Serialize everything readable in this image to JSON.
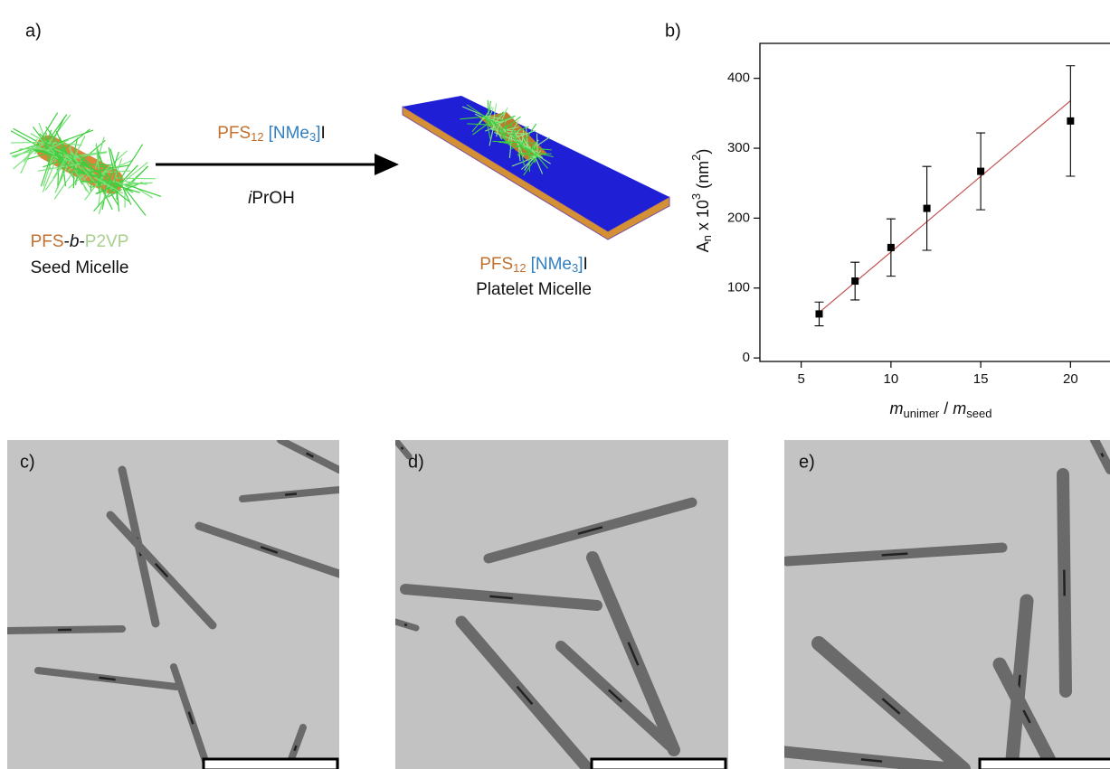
{
  "panels": {
    "a": {
      "label": "a)",
      "reagent": {
        "base": "PFS",
        "sub": "12",
        "group": "[NMe",
        "group_sub": "3",
        "bracket": "]",
        "ion": "I"
      },
      "solvent": {
        "italic": "i",
        "rest": "PrOH"
      },
      "seed": {
        "block1": "PFS",
        "dash1": "-",
        "b": "b",
        "dash2": "-",
        "block2": "P2VP",
        "caption": "Seed Micelle"
      },
      "platelet": {
        "base": "PFS",
        "sub": "12",
        "group": "[NMe",
        "group_sub": "3",
        "bracket": "]",
        "ion": "I",
        "caption": "Platelet Micelle"
      }
    },
    "b": {
      "label": "b)"
    },
    "c": {
      "label": "c)"
    },
    "d": {
      "label": "d)"
    },
    "e": {
      "label": "e)"
    }
  },
  "chart_data": {
    "type": "scatter",
    "x": [
      6,
      8,
      10,
      12,
      15,
      20
    ],
    "values": [
      63,
      110,
      158,
      214,
      267,
      339
    ],
    "errors": [
      17,
      27,
      41,
      60,
      55,
      79
    ],
    "color": "#000000",
    "fit": {
      "x": [
        6,
        20
      ],
      "values": [
        65,
        368
      ],
      "color": "#c0504d"
    },
    "xlim": [
      2.7,
      22.2
    ],
    "ylim": [
      -5,
      450
    ],
    "xticks": [
      5,
      10,
      15,
      20
    ],
    "yticks": [
      0,
      100,
      200,
      300,
      400
    ],
    "ylabel": {
      "main": "A",
      "sub": "n",
      "mid": " x 10",
      "sup": "3",
      "unit": " (nm",
      "unit_sup": "2",
      "close": ")"
    },
    "xlabel": {
      "m1": "m",
      "sub1": "unimer",
      "slash": " / ",
      "m2": "m",
      "sub2": "seed"
    }
  }
}
